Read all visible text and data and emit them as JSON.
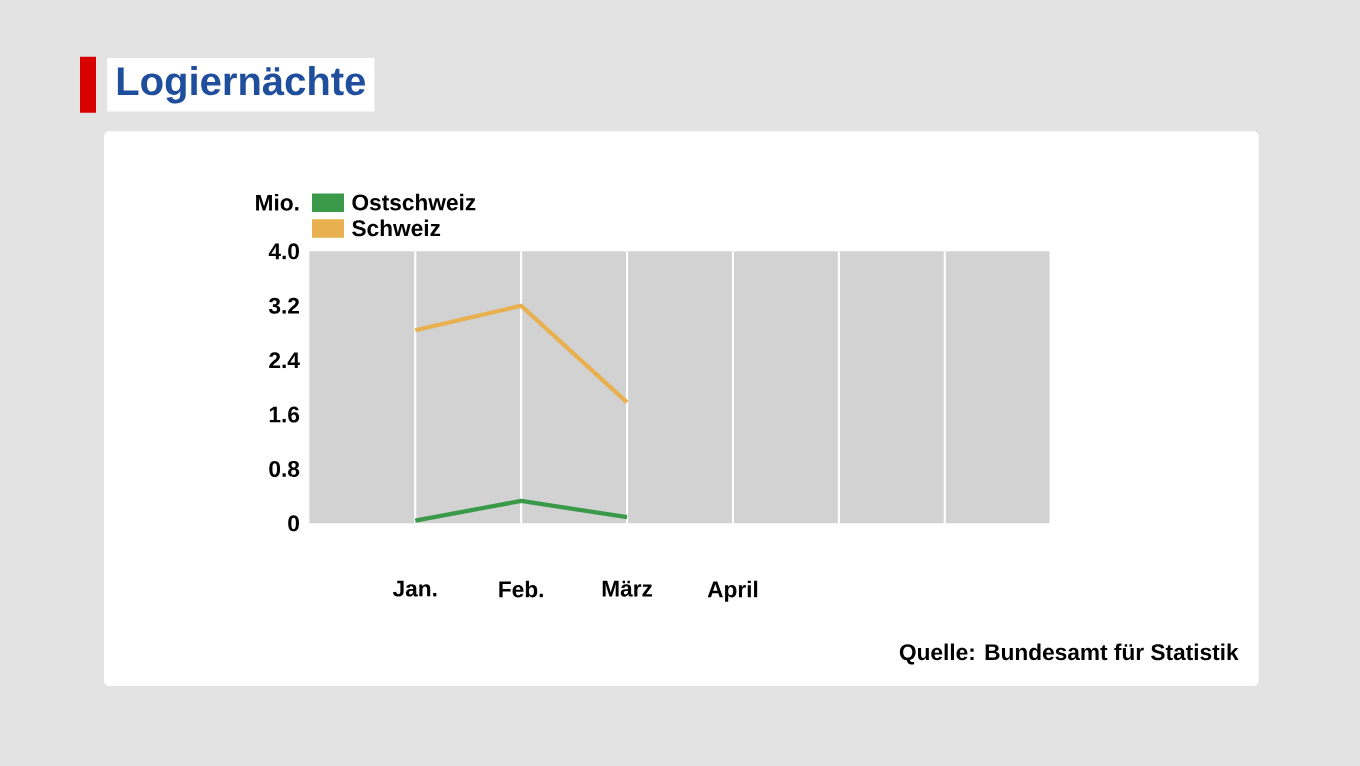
{
  "chart_data": {
    "type": "line",
    "title": "Logiernächte",
    "ylabel": "Mio.",
    "categories": [
      "Jan.",
      "Feb.",
      "März",
      "April",
      null,
      null,
      null
    ],
    "series": [
      {
        "name": "Ostschweiz",
        "color": "#3a9a4a",
        "values": [
          0.04,
          0.33,
          0.09,
          null,
          null,
          null,
          null
        ]
      },
      {
        "name": "Schweiz",
        "color": "#e8b04e",
        "values": [
          2.84,
          3.2,
          1.78,
          null,
          null,
          null,
          null
        ]
      }
    ],
    "ylim": [
      0,
      4.0
    ],
    "yticks": [
      0,
      {
        "value": 0.8,
        "label": "0.8"
      },
      {
        "value": 1.6,
        "label": "1.6"
      },
      {
        "value": 2.4,
        "label": "2.4"
      },
      {
        "value": 3.2,
        "label": "3.2"
      },
      {
        "value": 4.0,
        "label": "4.0"
      }
    ],
    "grid": "x",
    "legend": "top left",
    "line_style": "solid",
    "annotations": [
      "Quelle: Bundesamt für Statistik"
    ]
  }
}
